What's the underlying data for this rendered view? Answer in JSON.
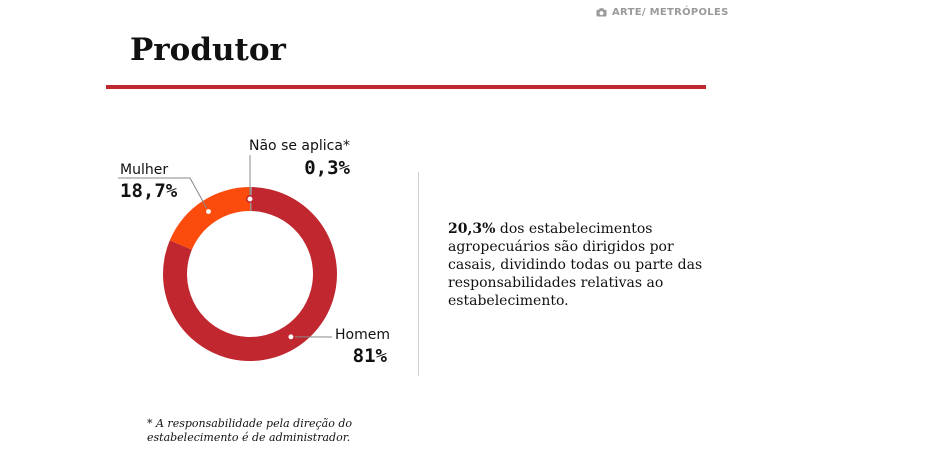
{
  "credit": {
    "text": "ARTE/ METRÓPOLES",
    "icon": "camera-icon"
  },
  "title": "Produtor",
  "colors": {
    "accent": "#c0272f",
    "homem": "#c0272f",
    "mulher": "#fc4c0d",
    "nao_se_aplica": "#999999"
  },
  "chart_data": {
    "type": "pie",
    "donut": true,
    "title": "",
    "slices": [
      {
        "label": "Não se aplica*",
        "value": 0.3,
        "display": "0,3%",
        "color": "#999999"
      },
      {
        "label": "Homem",
        "value": 81,
        "display": "81%",
        "color": "#c0272f"
      },
      {
        "label": "Mulher",
        "value": 18.7,
        "display": "18,7%",
        "color": "#fc4c0d"
      }
    ]
  },
  "body": {
    "highlight": "20,3%",
    "text": " dos estabelecimentos agropecuários são dirigidos por casais, dividindo todas ou parte das responsabilidades relativas ao estabelecimento."
  },
  "footnote": "* A responsabilidade pela direção do estabelecimento é de administrador."
}
